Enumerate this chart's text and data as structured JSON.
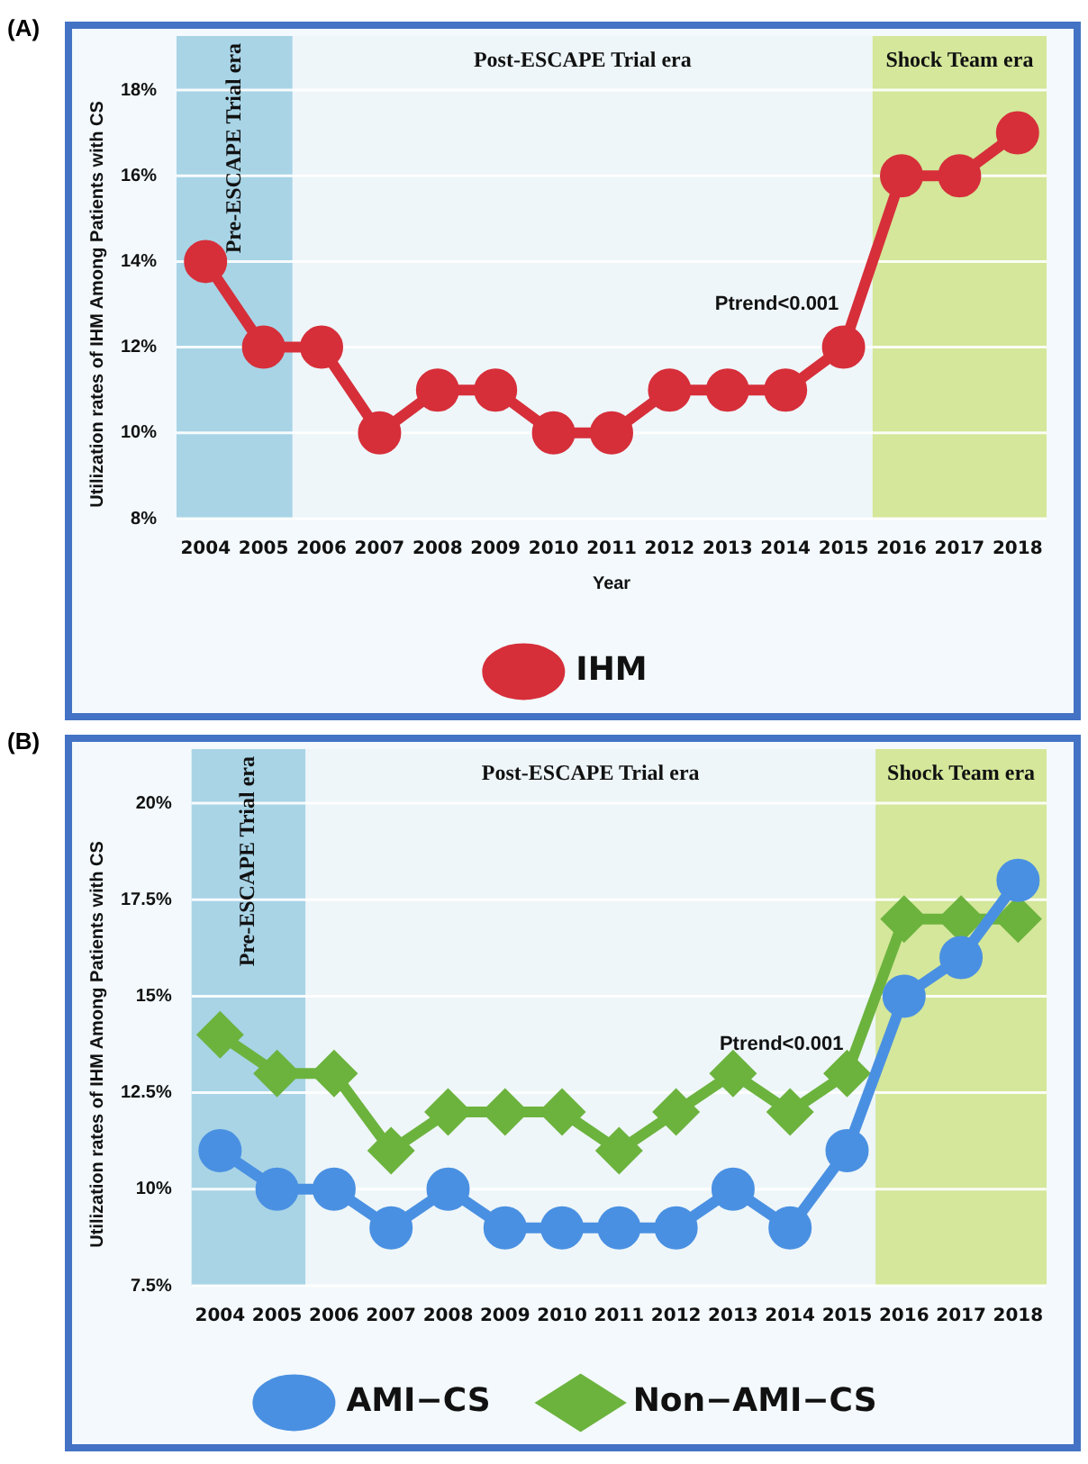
{
  "chart_data": [
    {
      "type": "line",
      "title": "(A)",
      "xlabel": "Year",
      "ylabel": "Utilization rates of IHM Among Patients with CS",
      "categories": [
        "2004",
        "2005",
        "2006",
        "2007",
        "2008",
        "2009",
        "2010",
        "2011",
        "2012",
        "2013",
        "2014",
        "2015",
        "2016",
        "2017",
        "2018"
      ],
      "series": [
        {
          "name": "IHM",
          "color": "#d62f3a",
          "marker": "circle",
          "values": [
            14,
            12,
            12,
            10,
            11,
            11,
            10,
            10,
            11,
            11,
            11,
            12,
            16,
            16,
            17
          ]
        }
      ],
      "ylim": [
        8,
        18
      ],
      "yticks": [
        {
          "value": 8,
          "label": "8%"
        },
        {
          "value": 10,
          "label": "10%"
        },
        {
          "value": 12,
          "label": "12%"
        },
        {
          "value": 14,
          "label": "14%"
        },
        {
          "value": 16,
          "label": "16%"
        },
        {
          "value": 18,
          "label": "18%"
        }
      ],
      "bands": [
        {
          "axis": "x",
          "from": "2004",
          "to": "2005",
          "label": "Pre-ESCAPE Trial era",
          "color": "#a8d4e6"
        },
        {
          "axis": "x",
          "from": "2006",
          "to": "2015",
          "label": "Post-ESCAPE Trial era",
          "color": "#eef6f9"
        },
        {
          "axis": "x",
          "from": "2016",
          "to": "2018",
          "label": "Shock Team era",
          "color": "#d4e79a"
        }
      ],
      "annotations": [
        "Ptrend<0.001"
      ],
      "grid": "y",
      "legend": "bottom"
    },
    {
      "type": "line",
      "title": "(B)",
      "ylabel": "Utilization rates of IHM Among Patients with CS",
      "categories": [
        "2004",
        "2005",
        "2006",
        "2007",
        "2008",
        "2009",
        "2010",
        "2011",
        "2012",
        "2013",
        "2014",
        "2015",
        "2016",
        "2017",
        "2018"
      ],
      "series": [
        {
          "name": "AMI−CS",
          "color": "#4a90e2",
          "marker": "circle",
          "values": [
            11,
            10,
            10,
            9,
            10,
            9,
            9,
            9,
            9,
            10,
            9,
            11,
            15,
            16,
            18
          ]
        },
        {
          "name": "Non−AMI−CS",
          "color": "#6cb33e",
          "marker": "diamond",
          "values": [
            14,
            13,
            13,
            11,
            12,
            12,
            12,
            11,
            12,
            13,
            12,
            13,
            17,
            17,
            17
          ]
        }
      ],
      "ylim": [
        7.5,
        20
      ],
      "yticks": [
        {
          "value": 7.5,
          "label": "7.5%"
        },
        {
          "value": 10,
          "label": "10%"
        },
        {
          "value": 12.5,
          "label": "12.5%"
        },
        {
          "value": 15,
          "label": "15%"
        },
        {
          "value": 17.5,
          "label": "17.5%"
        },
        {
          "value": 20,
          "label": "20%"
        }
      ],
      "bands": [
        {
          "axis": "x",
          "from": "2004",
          "to": "2005",
          "label": "Pre-ESCAPE Trial era",
          "color": "#a8d4e6"
        },
        {
          "axis": "x",
          "from": "2006",
          "to": "2015",
          "label": "Post-ESCAPE Trial era",
          "color": "#eef6f9"
        },
        {
          "axis": "x",
          "from": "2016",
          "to": "2018",
          "label": "Shock Team era",
          "color": "#d4e79a"
        }
      ],
      "annotations": [
        "Ptrend<0.001"
      ],
      "grid": "y",
      "legend": "bottom"
    }
  ]
}
